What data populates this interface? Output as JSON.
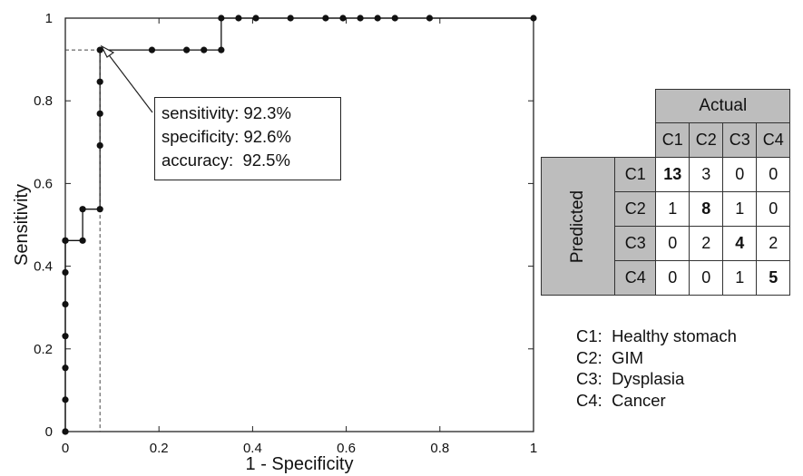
{
  "chart_data": {
    "type": "line",
    "xlabel": "1 - Specificity",
    "ylabel": "Sensitivity",
    "xlim": [
      0,
      1
    ],
    "ylim": [
      0,
      1
    ],
    "xticks": [
      "0",
      "0.2",
      "0.4",
      "0.6",
      "0.8",
      "1"
    ],
    "yticks": [
      "0",
      "0.2",
      "0.4",
      "0.6",
      "0.8",
      "1"
    ],
    "grid": false,
    "x": [
      0,
      0,
      0,
      0,
      0,
      0,
      0,
      0,
      0,
      0.037,
      0.037,
      0.074,
      0.074,
      0.074,
      0.074,
      0.074,
      0.185,
      0.259,
      0.296,
      0.333,
      0.333,
      0.37,
      0.407,
      0.481,
      0.556,
      0.593,
      0.63,
      0.667,
      0.704,
      0.778,
      1
    ],
    "y": [
      0,
      0,
      0.077,
      0.154,
      0.231,
      0.308,
      0.385,
      0.462,
      0.462,
      0.462,
      0.538,
      0.538,
      0.692,
      0.769,
      0.846,
      0.923,
      0.923,
      0.923,
      0.923,
      0.923,
      1,
      1,
      1,
      1,
      1,
      1,
      1,
      1,
      1,
      1,
      1
    ],
    "operating_point": {
      "x": 0.074,
      "y": 0.923
    },
    "annotation": [
      "sensitivity: 92.3%",
      "specificity: 92.6%",
      "accuracy:  92.5%"
    ]
  },
  "confusion_matrix": {
    "actual_label": "Actual",
    "predicted_label": "Predicted",
    "columns": [
      "C1",
      "C2",
      "C3",
      "C4"
    ],
    "rows": [
      {
        "label": "C1",
        "values": [
          "13",
          "3",
          "0",
          "0"
        ]
      },
      {
        "label": "C2",
        "values": [
          "1",
          "8",
          "1",
          "0"
        ]
      },
      {
        "label": "C3",
        "values": [
          "0",
          "2",
          "4",
          "2"
        ]
      },
      {
        "label": "C4",
        "values": [
          "0",
          "0",
          "1",
          "5"
        ]
      }
    ]
  },
  "legend": [
    "C1:  Healthy stomach",
    "C2:  GIM",
    "C3:  Dysplasia",
    "C4:  Cancer"
  ]
}
